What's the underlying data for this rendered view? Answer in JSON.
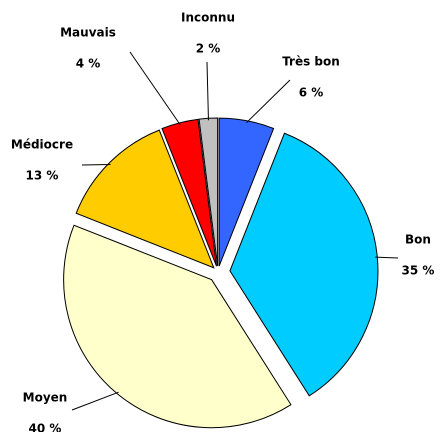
{
  "chart_data": {
    "type": "pie",
    "categories": [
      "Très bon",
      "Bon",
      "Moyen",
      "Médiocre",
      "Mauvais",
      "Inconnu"
    ],
    "values": [
      6,
      35,
      40,
      13,
      4,
      2
    ],
    "value_labels": [
      "6 %",
      "35 %",
      "40 %",
      "13 %",
      "4 %",
      "2 %"
    ],
    "colors": [
      "#3366ff",
      "#00ccff",
      "#ffffcc",
      "#ffcc00",
      "#ff0000",
      "#c0c0c0"
    ]
  }
}
